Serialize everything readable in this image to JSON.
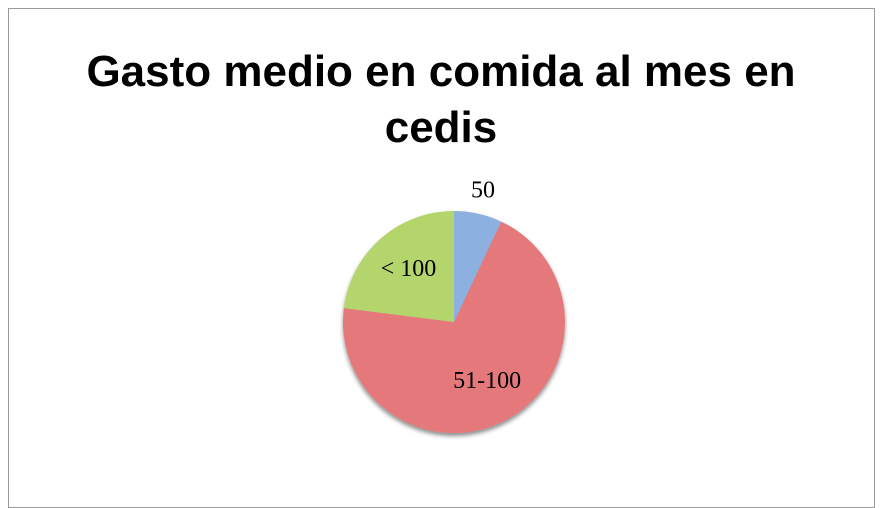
{
  "chart_data": {
    "type": "pie",
    "title": "Gasto medio en comida al mes en cedis",
    "categories": [
      "50",
      "51-100",
      "< 100"
    ],
    "values": [
      7,
      70,
      23
    ],
    "colors": [
      "#8cb1e0",
      "#e4787a",
      "#b4d46c"
    ]
  }
}
